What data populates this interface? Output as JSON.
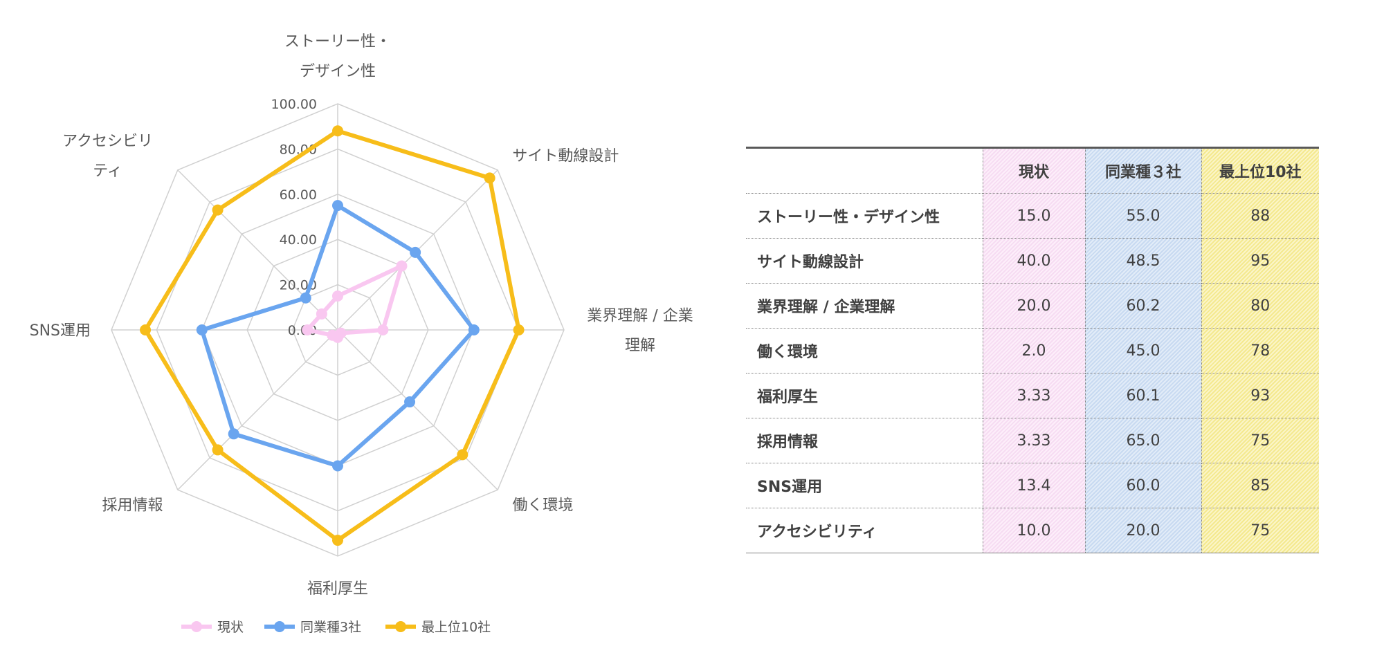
{
  "chart_data": {
    "type": "radar",
    "axes": [
      [
        "ストーリー性・",
        "デザイン性"
      ],
      [
        "サイト動線設計"
      ],
      [
        "業界理解 / 企業",
        "理解"
      ],
      [
        "働く環境"
      ],
      [
        "福利厚生"
      ],
      [
        "採用情報"
      ],
      [
        "SNS運用"
      ],
      [
        "アクセシビリ",
        "ティ"
      ]
    ],
    "ticks": [
      "0.00",
      "20.00",
      "40.00",
      "60.00",
      "80.00",
      "100.00"
    ],
    "range": [
      0,
      100
    ],
    "legend_position": "bottom",
    "series": [
      {
        "name": "現状",
        "color": "#f9c7f0",
        "values": [
          15.0,
          40.0,
          20.0,
          2.0,
          3.33,
          3.33,
          13.4,
          10.0
        ]
      },
      {
        "name": "同業種3社",
        "color": "#6aa5ef",
        "values": [
          55.0,
          48.5,
          60.2,
          45.0,
          60.1,
          65.0,
          60.0,
          20.0
        ]
      },
      {
        "name": "最上位10社",
        "color": "#f7bd1a",
        "values": [
          88,
          95,
          80,
          78,
          93,
          75,
          85,
          75
        ]
      }
    ]
  },
  "table": {
    "headers": [
      "",
      "現状",
      "同業種３社",
      "最上位10社"
    ],
    "rows": [
      {
        "label": "ストーリー性・デザイン性",
        "current": "15.0",
        "peer": "55.0",
        "top": "88"
      },
      {
        "label": "サイト動線設計",
        "current": "40.0",
        "peer": "48.5",
        "top": "95"
      },
      {
        "label": "業界理解 / 企業理解",
        "current": "20.0",
        "peer": "60.2",
        "top": "80"
      },
      {
        "label": "働く環境",
        "current": "2.0",
        "peer": "45.0",
        "top": "78"
      },
      {
        "label": "福利厚生",
        "current": "3.33",
        "peer": "60.1",
        "top": "93"
      },
      {
        "label": "採用情報",
        "current": "3.33",
        "peer": "65.0",
        "top": "75"
      },
      {
        "label": "SNS運用",
        "current": "13.4",
        "peer": "60.0",
        "top": "85"
      },
      {
        "label": "アクセシビリティ",
        "current": "10.0",
        "peer": "20.0",
        "top": "75"
      }
    ]
  }
}
